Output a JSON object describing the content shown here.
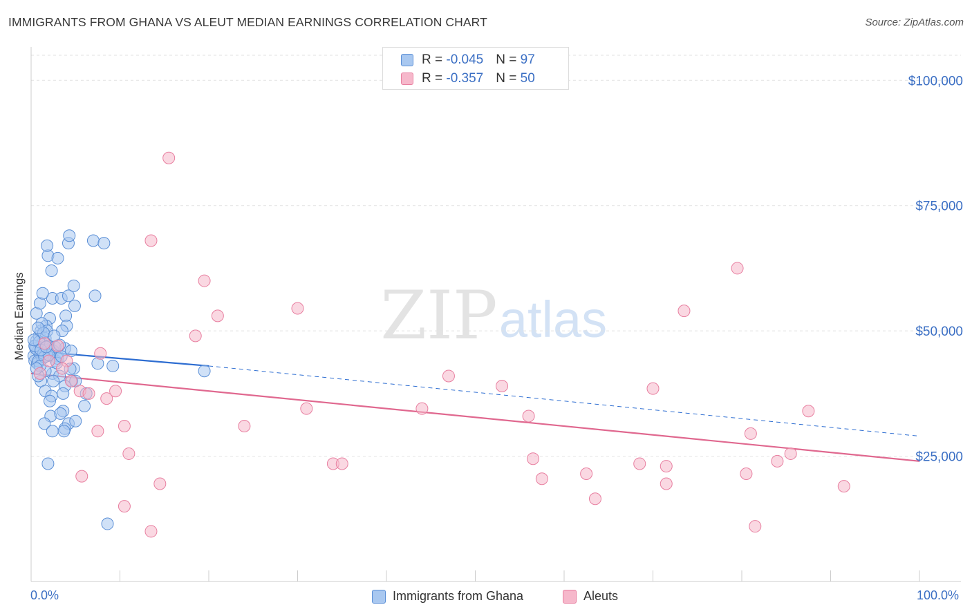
{
  "header": {
    "title": "IMMIGRANTS FROM GHANA VS ALEUT MEDIAN EARNINGS CORRELATION CHART",
    "source": "Source: ZipAtlas.com"
  },
  "watermark": {
    "zip": "ZIP",
    "atlas": "atlas"
  },
  "legend_top": {
    "rows": [
      {
        "r_label": "R = ",
        "r_value": "-0.045",
        "n_label": "N = ",
        "n_value": "97"
      },
      {
        "r_label": "R = ",
        "r_value": "-0.357",
        "n_label": "N = ",
        "n_value": "50"
      }
    ]
  },
  "legend_bottom": {
    "items": [
      "Immigrants from Ghana",
      "Aleuts"
    ]
  },
  "x_axis_labels": {
    "left": "0.0%",
    "right": "100.0%"
  },
  "colors": {
    "blue_fill": "#a9c8f0",
    "blue_stroke": "#5b8fd6",
    "blue_line": "#2d6dd1",
    "pink_fill": "#f6b8cb",
    "pink_stroke": "#e87fa0",
    "pink_line": "#e0688f",
    "axis_label": "#3b6fc4",
    "grid": "#e2e2e2"
  },
  "chart_data": {
    "type": "scatter",
    "title": "IMMIGRANTS FROM GHANA VS ALEUT MEDIAN EARNINGS CORRELATION CHART",
    "xlabel": "",
    "ylabel": "Median Earnings",
    "xlim": [
      0,
      100
    ],
    "ylim": [
      0,
      105000
    ],
    "y_ticks": [
      25000,
      50000,
      75000,
      100000
    ],
    "y_tick_labels": [
      "$25,000",
      "$50,000",
      "$75,000",
      "$100,000"
    ],
    "x_tick_labels": [
      "0.0%",
      "100.0%"
    ],
    "grid": true,
    "legend_position": "top-center",
    "series": [
      {
        "name": "Immigrants from Ghana",
        "r": -0.045,
        "n": 97,
        "trend": {
          "x0": 0,
          "y0": 46000,
          "x1": 20,
          "y1": 43000,
          "dash_x1": 100,
          "dash_y1": 29000
        },
        "points": [
          [
            0.3,
            45000
          ],
          [
            0.5,
            47000
          ],
          [
            0.6,
            48000
          ],
          [
            0.4,
            44000
          ],
          [
            0.8,
            46000
          ],
          [
            1.0,
            45500
          ],
          [
            1.2,
            47500
          ],
          [
            0.7,
            43500
          ],
          [
            1.5,
            46500
          ],
          [
            1.8,
            45000
          ],
          [
            0.9,
            49000
          ],
          [
            1.1,
            50000
          ],
          [
            1.3,
            44500
          ],
          [
            2.0,
            47000
          ],
          [
            2.2,
            46000
          ],
          [
            1.6,
            48500
          ],
          [
            0.5,
            46500
          ],
          [
            0.8,
            44000
          ],
          [
            1.4,
            45500
          ],
          [
            1.9,
            47000
          ],
          [
            2.5,
            46000
          ],
          [
            3.0,
            45000
          ],
          [
            3.8,
            46500
          ],
          [
            4.5,
            46000
          ],
          [
            2.8,
            44000
          ],
          [
            2.1,
            52500
          ],
          [
            3.9,
            53000
          ],
          [
            1.7,
            51000
          ],
          [
            1.2,
            51500
          ],
          [
            4.0,
            51000
          ],
          [
            3.5,
            50000
          ],
          [
            0.6,
            53500
          ],
          [
            1.8,
            50000
          ],
          [
            1.0,
            55500
          ],
          [
            2.4,
            56500
          ],
          [
            3.4,
            56500
          ],
          [
            4.2,
            57000
          ],
          [
            7.2,
            57000
          ],
          [
            4.9,
            55000
          ],
          [
            1.3,
            57500
          ],
          [
            4.8,
            59000
          ],
          [
            2.3,
            62000
          ],
          [
            1.9,
            65000
          ],
          [
            3.0,
            64500
          ],
          [
            1.8,
            67000
          ],
          [
            4.2,
            67500
          ],
          [
            7.0,
            68000
          ],
          [
            8.2,
            67500
          ],
          [
            4.3,
            69000
          ],
          [
            3.0,
            44500
          ],
          [
            2.4,
            41500
          ],
          [
            3.2,
            41000
          ],
          [
            1.6,
            42000
          ],
          [
            4.8,
            42500
          ],
          [
            7.5,
            43500
          ],
          [
            9.2,
            43000
          ],
          [
            19.5,
            42000
          ],
          [
            1.1,
            40000
          ],
          [
            2.5,
            40000
          ],
          [
            4.6,
            40000
          ],
          [
            5.0,
            40000
          ],
          [
            3.8,
            39000
          ],
          [
            0.8,
            41000
          ],
          [
            1.6,
            38000
          ],
          [
            3.6,
            37500
          ],
          [
            2.3,
            37000
          ],
          [
            6.2,
            37500
          ],
          [
            6.0,
            35000
          ],
          [
            2.1,
            36000
          ],
          [
            3.6,
            34000
          ],
          [
            2.2,
            33000
          ],
          [
            3.3,
            33500
          ],
          [
            4.2,
            31500
          ],
          [
            3.8,
            30500
          ],
          [
            1.5,
            31500
          ],
          [
            2.4,
            30000
          ],
          [
            3.7,
            30000
          ],
          [
            5.0,
            32000
          ],
          [
            1.9,
            23500
          ],
          [
            8.6,
            11500
          ],
          [
            0.4,
            47000
          ],
          [
            0.9,
            47800
          ],
          [
            1.5,
            44800
          ],
          [
            2.7,
            46800
          ],
          [
            1.0,
            43000
          ],
          [
            0.3,
            48200
          ],
          [
            2.0,
            45200
          ],
          [
            3.2,
            47200
          ],
          [
            1.4,
            49600
          ],
          [
            0.6,
            42500
          ],
          [
            2.9,
            43600
          ],
          [
            1.1,
            46200
          ],
          [
            0.8,
            50600
          ],
          [
            2.6,
            49000
          ],
          [
            1.7,
            46800
          ],
          [
            3.4,
            44900
          ],
          [
            4.4,
            42400
          ]
        ]
      },
      {
        "name": "Aleuts",
        "r": -0.357,
        "n": 50,
        "trend": {
          "x0": 0,
          "y0": 41500,
          "x1": 100,
          "y1": 24000
        },
        "points": [
          [
            15.5,
            84500
          ],
          [
            13.5,
            68000
          ],
          [
            19.5,
            60000
          ],
          [
            21.0,
            53000
          ],
          [
            30.0,
            54500
          ],
          [
            18.5,
            49000
          ],
          [
            47.0,
            41000
          ],
          [
            53.0,
            39000
          ],
          [
            70.0,
            38500
          ],
          [
            56.0,
            33000
          ],
          [
            73.5,
            54000
          ],
          [
            79.5,
            62500
          ],
          [
            87.5,
            34000
          ],
          [
            44.0,
            34500
          ],
          [
            31.0,
            34500
          ],
          [
            24.0,
            31000
          ],
          [
            10.5,
            31000
          ],
          [
            7.5,
            30000
          ],
          [
            8.5,
            36500
          ],
          [
            9.5,
            38000
          ],
          [
            1.5,
            47500
          ],
          [
            3.0,
            47000
          ],
          [
            4.0,
            44000
          ],
          [
            5.5,
            38000
          ],
          [
            6.5,
            37500
          ],
          [
            7.8,
            45500
          ],
          [
            11.0,
            25500
          ],
          [
            14.5,
            19500
          ],
          [
            10.5,
            15000
          ],
          [
            13.5,
            10000
          ],
          [
            5.7,
            21000
          ],
          [
            34.0,
            23500
          ],
          [
            35.0,
            23500
          ],
          [
            56.5,
            24500
          ],
          [
            57.5,
            20500
          ],
          [
            62.5,
            21500
          ],
          [
            63.5,
            16500
          ],
          [
            68.5,
            23500
          ],
          [
            71.5,
            23000
          ],
          [
            71.5,
            19500
          ],
          [
            80.5,
            21500
          ],
          [
            81.0,
            29500
          ],
          [
            84.0,
            24000
          ],
          [
            85.5,
            25500
          ],
          [
            91.5,
            19000
          ],
          [
            81.5,
            11000
          ],
          [
            2.0,
            44000
          ],
          [
            4.5,
            40000
          ],
          [
            1.0,
            41500
          ],
          [
            3.5,
            42500
          ]
        ]
      }
    ]
  }
}
